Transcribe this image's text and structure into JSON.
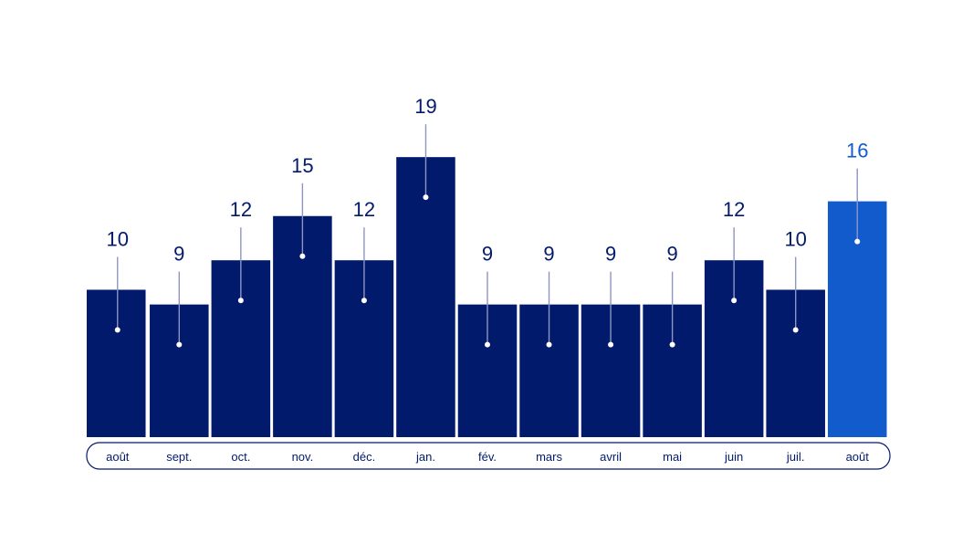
{
  "chart_data": {
    "type": "bar",
    "title": "",
    "xlabel": "",
    "ylabel": "",
    "categories": [
      "août",
      "sept.",
      "oct.",
      "nov.",
      "déc.",
      "jan.",
      "fév.",
      "mars",
      "avril",
      "mai",
      "juin",
      "juil.",
      "août"
    ],
    "values": [
      10,
      9,
      12,
      15,
      12,
      19,
      9,
      9,
      9,
      9,
      12,
      10,
      16
    ],
    "ylim": [
      0,
      19
    ],
    "highlight_index": 12,
    "grid": false,
    "legend": "none",
    "colors": {
      "bar": "#021a6b",
      "highlight": "#115bcc",
      "value_text": "#021a6b",
      "highlight_text": "#115bcc",
      "leader_line": "#8c96c2",
      "axis_pill_border": "#021a6b",
      "month_text": "#021a6b"
    }
  }
}
